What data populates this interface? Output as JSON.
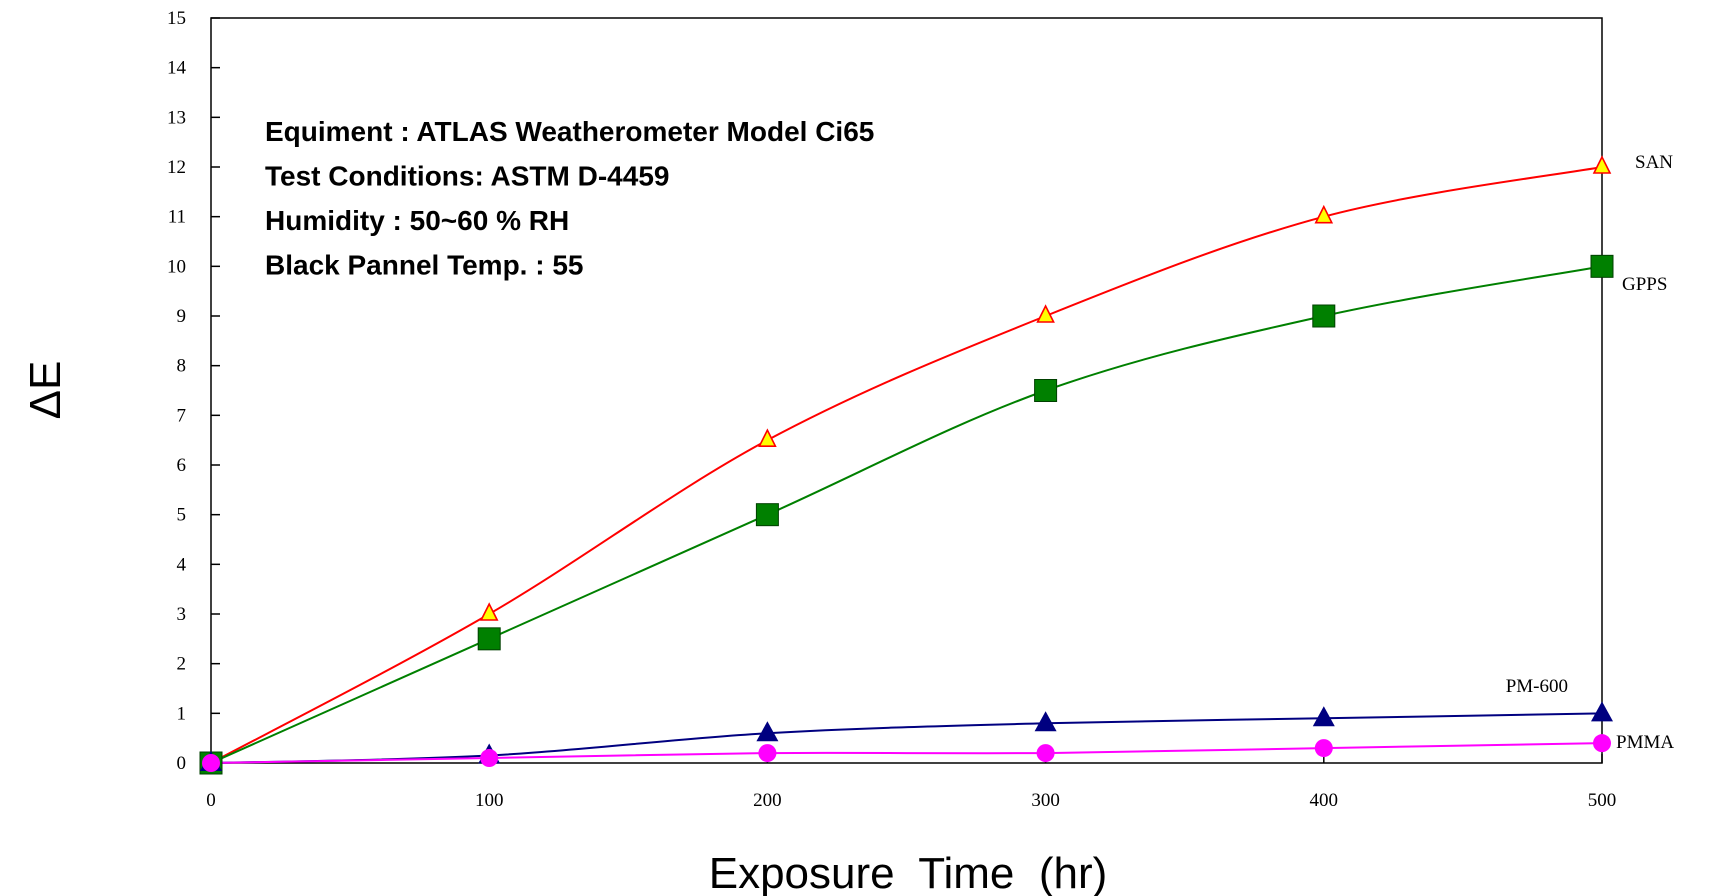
{
  "chart_data": {
    "type": "line",
    "xlabel": "Exposure  Time  (hr)",
    "ylabel": "ΔE",
    "xlim": [
      0,
      500
    ],
    "ylim": [
      0,
      15
    ],
    "x_ticks": [
      0,
      100,
      200,
      300,
      400,
      500
    ],
    "y_ticks": [
      0,
      1,
      2,
      3,
      4,
      5,
      6,
      7,
      8,
      9,
      10,
      11,
      12,
      13,
      14,
      15
    ],
    "grid": false,
    "annotations": [
      "Equiment : ATLAS Weatherometer Model Ci65",
      "Test Conditions:  ASTM D-4459",
      "Humidity : 50~60 % RH",
      "Black Pannel Temp. : 55"
    ],
    "series": [
      {
        "name": "SAN",
        "marker": "open-triangle",
        "color": "#ff0000",
        "marker_fill": "#ffff00",
        "x": [
          0,
          100,
          200,
          300,
          400,
          500
        ],
        "values": [
          0,
          3,
          6.5,
          9,
          11,
          12
        ]
      },
      {
        "name": "GPPS",
        "marker": "square",
        "color": "#008000",
        "x": [
          0,
          100,
          200,
          300,
          400,
          500
        ],
        "values": [
          0,
          2.5,
          5,
          7.5,
          9,
          10
        ]
      },
      {
        "name": "PM-600",
        "marker": "triangle",
        "color": "#000080",
        "x": [
          0,
          100,
          200,
          300,
          400,
          500
        ],
        "values": [
          0,
          0.15,
          0.6,
          0.8,
          0.9,
          1.0
        ]
      },
      {
        "name": "PMMA",
        "marker": "circle",
        "color": "#ff00ff",
        "x": [
          0,
          100,
          200,
          300,
          400,
          500
        ],
        "values": [
          0,
          0.1,
          0.2,
          0.2,
          0.3,
          0.4
        ]
      }
    ]
  }
}
